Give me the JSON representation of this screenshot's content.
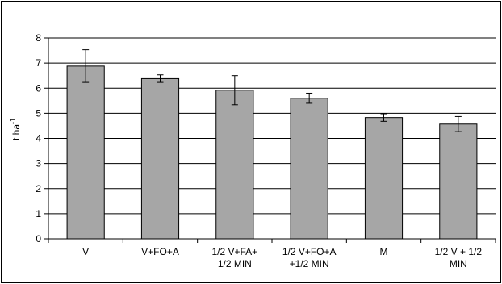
{
  "chart_data": {
    "type": "bar",
    "title": "",
    "xlabel": "",
    "ylabel": "t ha",
    "ylabel_superscript": "-1",
    "ylim": [
      0,
      8
    ],
    "yticks": [
      0,
      1,
      2,
      3,
      4,
      5,
      6,
      7,
      8
    ],
    "grid": true,
    "legend": "none",
    "bar_color": "#a6a6a6",
    "categories": [
      [
        "V"
      ],
      [
        "V+FO+A"
      ],
      [
        "1/2 V+FA+",
        "1/2 MIN"
      ],
      [
        "1/2 V+FO+A",
        "+1/2 MIN"
      ],
      [
        "M"
      ],
      [
        "1/2 V + 1/2",
        "MIN"
      ]
    ],
    "values": [
      6.88,
      6.38,
      5.92,
      5.6,
      4.83,
      4.57
    ],
    "error": [
      0.65,
      0.15,
      0.58,
      0.2,
      0.15,
      0.3
    ]
  }
}
